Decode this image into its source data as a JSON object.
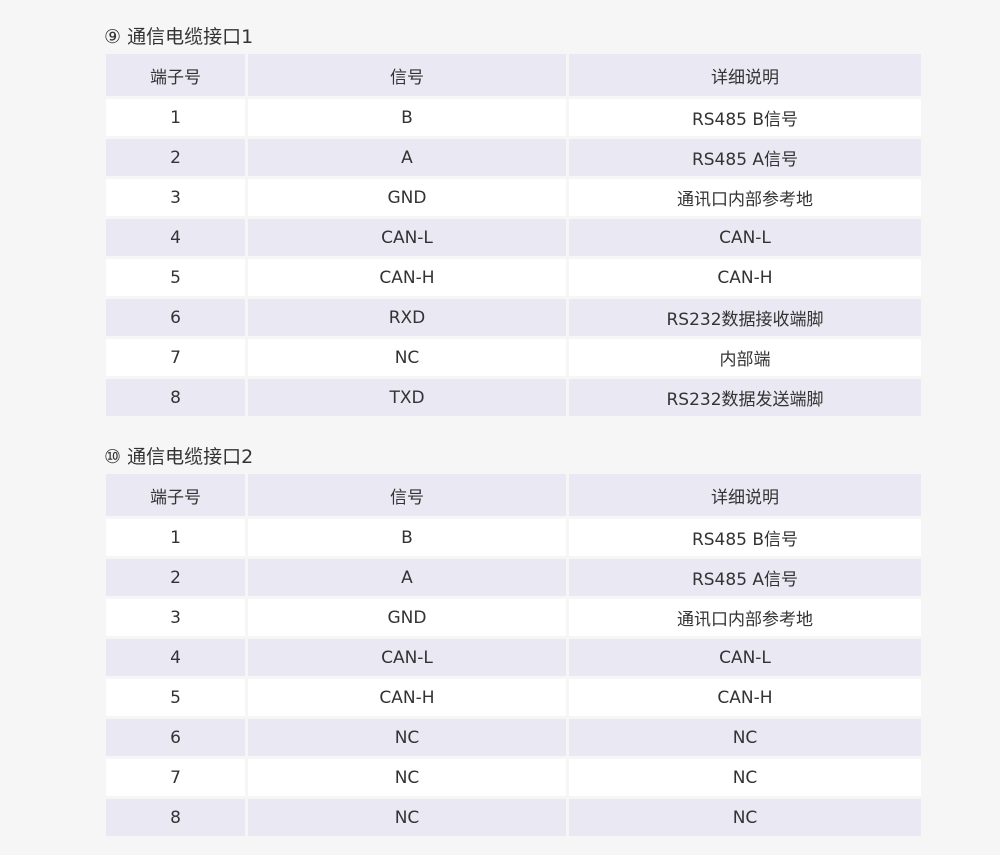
{
  "tables": [
    {
      "title": "⑨ 通信电缆接口1",
      "headers": [
        "端子号",
        "信号",
        "详细说明"
      ],
      "rows": [
        [
          "1",
          "B",
          "RS485 B信号"
        ],
        [
          "2",
          "A",
          "RS485 A信号"
        ],
        [
          "3",
          "GND",
          "通讯口内部参考地"
        ],
        [
          "4",
          "CAN-L",
          "CAN-L"
        ],
        [
          "5",
          "CAN-H",
          "CAN-H"
        ],
        [
          "6",
          "RXD",
          "RS232数据接收端脚"
        ],
        [
          "7",
          "NC",
          "内部端"
        ],
        [
          "8",
          "TXD",
          "RS232数据发送端脚"
        ]
      ]
    },
    {
      "title": "⑩ 通信电缆接口2",
      "headers": [
        "端子号",
        "信号",
        "详细说明"
      ],
      "rows": [
        [
          "1",
          "B",
          "RS485 B信号"
        ],
        [
          "2",
          "A",
          "RS485 A信号"
        ],
        [
          "3",
          "GND",
          "通讯口内部参考地"
        ],
        [
          "4",
          "CAN-L",
          "CAN-L"
        ],
        [
          "5",
          "CAN-H",
          "CAN-H"
        ],
        [
          "6",
          "NC",
          "NC"
        ],
        [
          "7",
          "NC",
          "NC"
        ],
        [
          "8",
          "NC",
          "NC"
        ]
      ]
    }
  ],
  "colors": {
    "background": "#f6f6f6",
    "header": "#e9e8f3",
    "alt_row": "#e9e8f3",
    "row": "#ffffff"
  }
}
